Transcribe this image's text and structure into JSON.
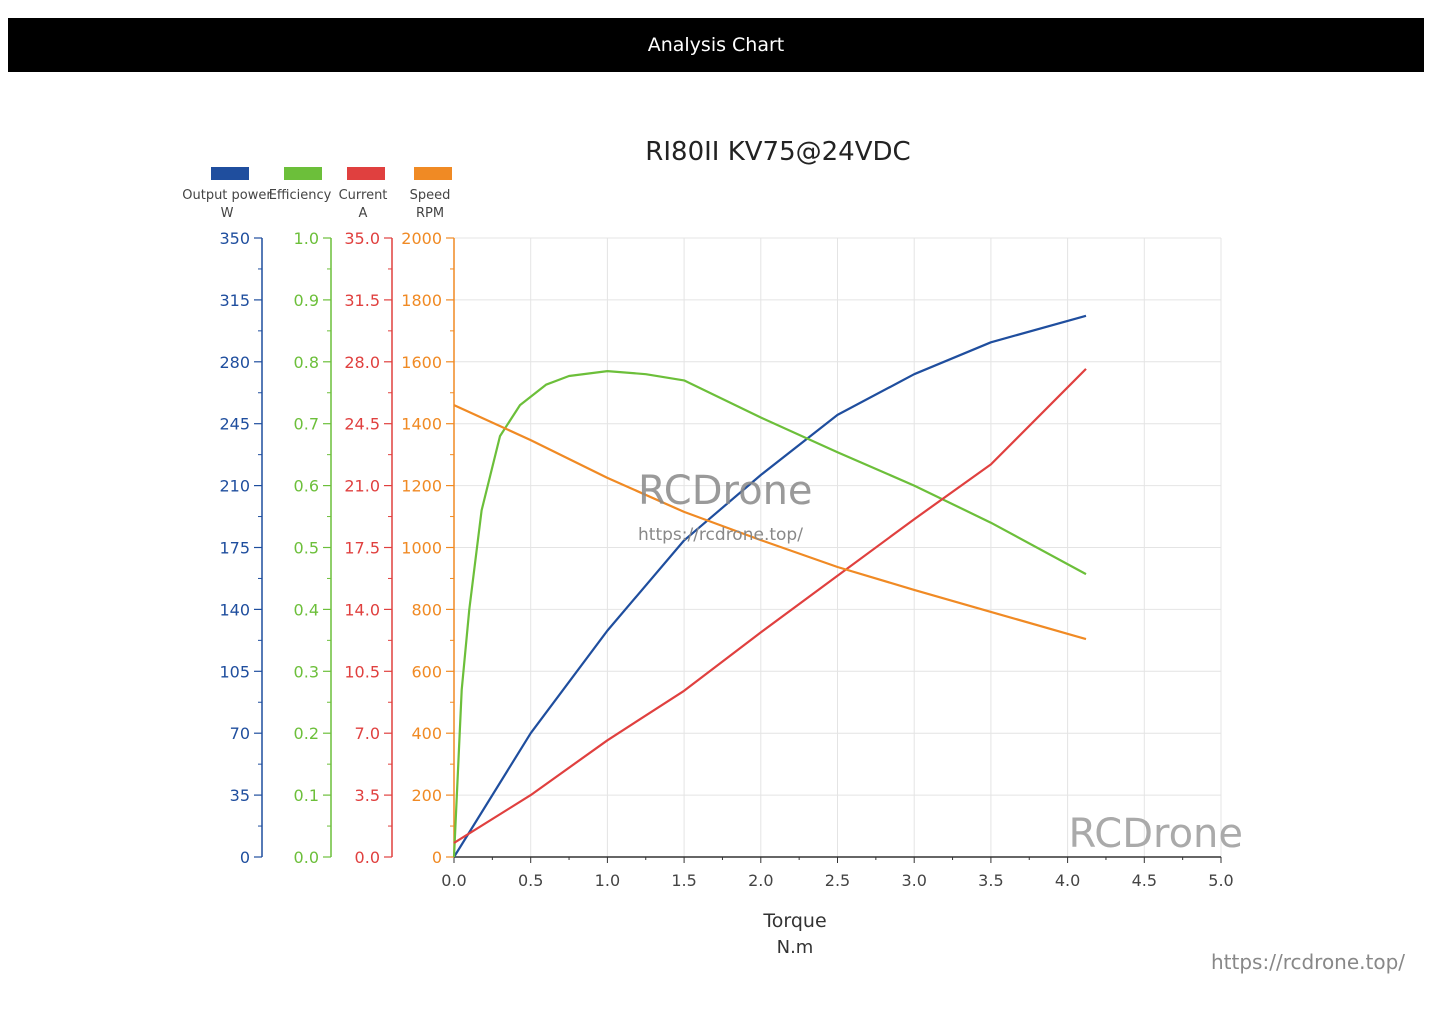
{
  "header": {
    "title": "Analysis Chart"
  },
  "footer": {
    "url": "https://rcdrone.top/"
  },
  "watermark": {
    "brand": "RCDrone",
    "url": "https://rcdrone.top/",
    "corner_brand": "RCDrone"
  },
  "chart_data": {
    "type": "line",
    "title": "RI80II KV75@24VDC",
    "xlabel": "Torque",
    "xunit": "N.m",
    "xlim": [
      0,
      5.0
    ],
    "xticks": [
      "0.0",
      "0.5",
      "1.0",
      "1.5",
      "2.0",
      "2.5",
      "3.0",
      "3.5",
      "4.0",
      "4.5",
      "5.0"
    ],
    "grid": true,
    "legend_position": "top-left",
    "axes": [
      {
        "id": "power",
        "name": "Output power",
        "unit": "W",
        "color": "#1f4e9e",
        "ylim": [
          0,
          350
        ],
        "ticks": [
          "350",
          "315",
          "280",
          "245",
          "210",
          "175",
          "140",
          "105",
          "70",
          "35",
          "0"
        ]
      },
      {
        "id": "eff",
        "name": "Efficiency",
        "unit": "",
        "color": "#6cbf3a",
        "ylim": [
          0,
          1
        ],
        "ticks": [
          "1.0",
          "0.9",
          "0.8",
          "0.7",
          "0.6",
          "0.5",
          "0.4",
          "0.3",
          "0.2",
          "0.1",
          "0.0"
        ]
      },
      {
        "id": "cur",
        "name": "Current",
        "unit": "A",
        "color": "#e0403f",
        "ylim": [
          0,
          35
        ],
        "ticks": [
          "35.0",
          "31.5",
          "28.0",
          "24.5",
          "21.0",
          "17.5",
          "14.0",
          "10.5",
          "7.0",
          "3.5",
          "0.0"
        ]
      },
      {
        "id": "spd",
        "name": "Speed",
        "unit": "RPM",
        "color": "#f08a24",
        "ylim": [
          0,
          2000
        ],
        "ticks": [
          "2000",
          "1800",
          "1600",
          "1400",
          "1200",
          "1000",
          "800",
          "600",
          "400",
          "200",
          "0"
        ]
      }
    ],
    "series": [
      {
        "name": "Output power",
        "axis": "power",
        "color": "#1f4e9e",
        "x": [
          0,
          0.5,
          1.0,
          1.5,
          2.0,
          2.5,
          3.0,
          3.5,
          4.12
        ],
        "y": [
          0,
          70,
          128,
          179,
          216,
          250,
          273,
          291,
          306
        ]
      },
      {
        "name": "Efficiency",
        "axis": "eff",
        "color": "#6cbf3a",
        "x": [
          0,
          0.05,
          0.1,
          0.18,
          0.3,
          0.43,
          0.6,
          0.75,
          1.0,
          1.25,
          1.5,
          2.0,
          2.5,
          3.0,
          3.5,
          4.12
        ],
        "y": [
          0,
          0.27,
          0.4,
          0.56,
          0.68,
          0.73,
          0.763,
          0.777,
          0.785,
          0.78,
          0.77,
          0.71,
          0.654,
          0.6,
          0.54,
          0.457
        ]
      },
      {
        "name": "Current",
        "axis": "cur",
        "color": "#e0403f",
        "x": [
          0,
          0.5,
          1.0,
          1.5,
          2.0,
          2.5,
          3.0,
          3.5,
          4.12
        ],
        "y": [
          0.8,
          3.5,
          6.6,
          9.4,
          12.7,
          15.9,
          19.1,
          22.2,
          27.6
        ]
      },
      {
        "name": "Speed",
        "axis": "spd",
        "color": "#f08a24",
        "x": [
          0,
          0.5,
          1.0,
          1.5,
          2.0,
          2.5,
          3.0,
          3.5,
          4.12
        ],
        "y": [
          1460,
          1347,
          1225,
          1115,
          1024,
          937,
          863,
          792,
          704
        ]
      }
    ]
  }
}
